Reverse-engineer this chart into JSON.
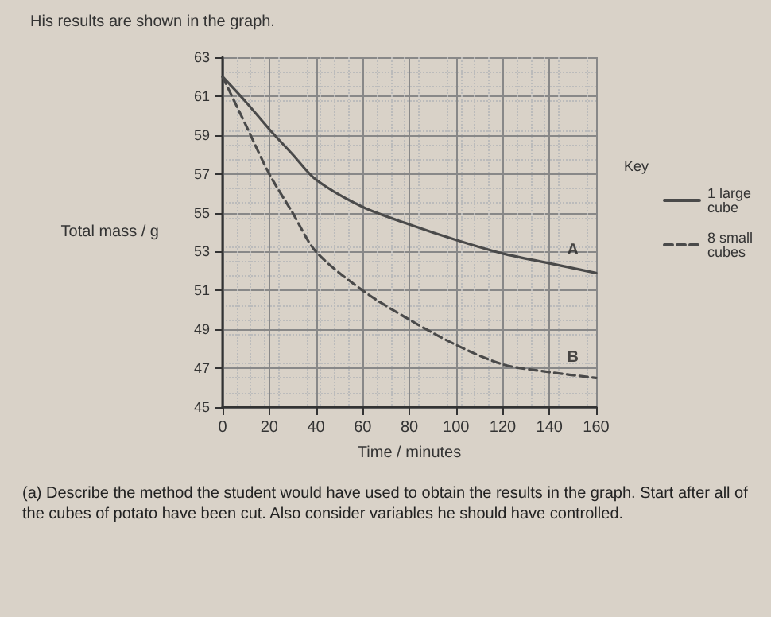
{
  "chart_data": {
    "type": "line",
    "title": "His results are shown in the graph.",
    "xlabel": "Time / minutes",
    "ylabel": "Total mass / g",
    "legend_title": "Key",
    "x": [
      0,
      10,
      20,
      30,
      40,
      60,
      80,
      100,
      120,
      140,
      160
    ],
    "series": [
      {
        "name": "1 large cube",
        "color": "#4a4a4a",
        "line_style": "solid",
        "values": [
          62,
          60.7,
          59.3,
          58,
          56.7,
          55.3,
          54.4,
          53.6,
          52.9,
          52.4,
          51.9
        ]
      },
      {
        "name": "8 small cubes",
        "color": "#4a4a4a",
        "line_style": "dashed",
        "values": [
          62,
          59.5,
          57,
          55,
          53,
          51,
          49.5,
          48.2,
          47.2,
          46.8,
          46.5
        ]
      }
    ],
    "xlim": [
      0,
      160
    ],
    "xticks": [
      0,
      20,
      40,
      60,
      80,
      100,
      120,
      140,
      160
    ],
    "ylim": [
      45,
      63
    ],
    "yticks": [
      45,
      47,
      49,
      51,
      53,
      55,
      57,
      59,
      61,
      63
    ],
    "grid": true,
    "legend": "right",
    "marker": "none",
    "annotations": [
      {
        "text": "A",
        "x": 150,
        "y": 52.15
      },
      {
        "text": "B",
        "x": 150,
        "y": 46.65
      },
      "(a)   Describe the method the student would have used to obtain the results in the graph. Start after all of the cubes of potato have been cut. Also consider variables he should have controlled."
    ]
  }
}
